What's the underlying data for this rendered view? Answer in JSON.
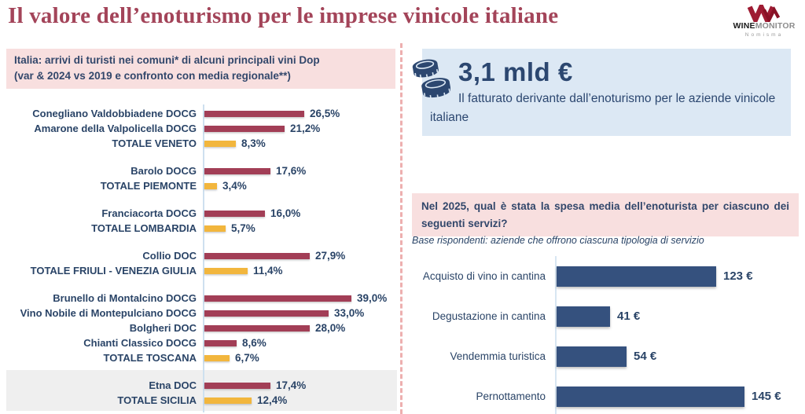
{
  "header": {
    "title": "Il valore dell’enoturismo per le imprese vinicole italiane",
    "logo": {
      "wine": "WINE",
      "monitor": "MONITOR",
      "sub": "Nomisma",
      "monogram_icon": "wm-monogram",
      "brand_color": "#9E1B32"
    }
  },
  "left": {
    "box": {
      "line1": "Italia: arrivi di turisti nei comuni* di alcuni principali vini Dop",
      "line2": "(var & 2024 vs 2019 e confronto con media regionale**)"
    }
  },
  "right": {
    "stat": {
      "icon": "coins-icon",
      "value": "3,1 mld €",
      "description": "Il fatturato derivante dall’enoturismo per le aziende vinicole italiane"
    },
    "question": "Nel 2025, qual è stata la spesa media dell’enoturista per ciascuno dei seguenti servizi?",
    "base_note": "Base rispondenti: aziende che offrono ciascuna tipologia di servizio"
  },
  "colors": {
    "title": "#A34459",
    "navy_text": "#2A4467",
    "wine_bar": "#A23E56",
    "region_bar": "#F2B63D",
    "euro_bar": "#35517E",
    "pink_bg": "#F8DFDF",
    "blue_bg": "#DCE8F4",
    "highlight_band": "#EFEFEF"
  },
  "chart_data": [
    {
      "type": "bar",
      "orientation": "horizontal",
      "title": "Italia: arrivi di turisti nei comuni* di alcuni principali vini Dop (var & 2024 vs 2019 e confronto con media regionale**)",
      "unit": "%",
      "xlim": [
        0,
        40
      ],
      "grid": false,
      "legend": "none",
      "bar_colors": {
        "wine": "#A23E56",
        "region": "#F2B63D"
      },
      "groups": [
        {
          "region": "Veneto",
          "rows": [
            {
              "label": "Conegliano Valdobbiadene DOCG",
              "value": 26.5,
              "display": "26,5%",
              "kind": "wine"
            },
            {
              "label": "Amarone della Valpolicella DOCG",
              "value": 21.2,
              "display": "21,2%",
              "kind": "wine"
            },
            {
              "label": "TOTALE VENETO",
              "value": 8.3,
              "display": "8,3%",
              "kind": "region"
            }
          ]
        },
        {
          "region": "Piemonte",
          "rows": [
            {
              "label": "Barolo DOCG",
              "value": 17.6,
              "display": "17,6%",
              "kind": "wine"
            },
            {
              "label": "TOTALE PIEMONTE",
              "value": 3.4,
              "display": "3,4%",
              "kind": "region"
            }
          ]
        },
        {
          "region": "Lombardia",
          "rows": [
            {
              "label": "Franciacorta DOCG",
              "value": 16.0,
              "display": "16,0%",
              "kind": "wine"
            },
            {
              "label": "TOTALE LOMBARDIA",
              "value": 5.7,
              "display": "5,7%",
              "kind": "region"
            }
          ]
        },
        {
          "region": "Friuli - Venezia Giulia",
          "rows": [
            {
              "label": "Collio DOC",
              "value": 27.9,
              "display": "27,9%",
              "kind": "wine"
            },
            {
              "label": "TOTALE FRIULI - VENEZIA GIULIA",
              "value": 11.4,
              "display": "11,4%",
              "kind": "region"
            }
          ]
        },
        {
          "region": "Toscana",
          "rows": [
            {
              "label": "Brunello di Montalcino DOCG",
              "value": 39.0,
              "display": "39,0%",
              "kind": "wine"
            },
            {
              "label": "Vino Nobile di Montepulciano DOCG",
              "value": 33.0,
              "display": "33,0%",
              "kind": "wine"
            },
            {
              "label": "Bolgheri DOC",
              "value": 28.0,
              "display": "28,0%",
              "kind": "wine"
            },
            {
              "label": "Chianti Classico DOCG",
              "value": 8.6,
              "display": "8,6%",
              "kind": "wine"
            },
            {
              "label": "TOTALE TOSCANA",
              "value": 6.7,
              "display": "6,7%",
              "kind": "region"
            }
          ]
        },
        {
          "region": "Sicilia",
          "highlighted": true,
          "rows": [
            {
              "label": "Etna DOC",
              "value": 17.4,
              "display": "17,4%",
              "kind": "wine"
            },
            {
              "label": "TOTALE SICILIA",
              "value": 12.4,
              "display": "12,4%",
              "kind": "region"
            }
          ]
        }
      ]
    },
    {
      "type": "bar",
      "orientation": "horizontal",
      "title": "Nel 2025, qual è stata la spesa media dell’enoturista per ciascuno dei seguenti servizi?",
      "subtitle": "Base rispondenti: aziende che offrono ciascuna tipologia di servizio",
      "unit": "€",
      "xlim": [
        0,
        160
      ],
      "grid": false,
      "legend": "none",
      "bar_color": "#35517E",
      "rows": [
        {
          "label": "Acquisto di vino in cantina",
          "value": 123,
          "display": "123 €"
        },
        {
          "label": "Degustazione in cantina",
          "value": 41,
          "display": "41 €"
        },
        {
          "label": "Vendemmia turistica",
          "value": 54,
          "display": "54 €"
        },
        {
          "label": "Pernottamento",
          "value": 145,
          "display": "145 €"
        }
      ]
    }
  ]
}
